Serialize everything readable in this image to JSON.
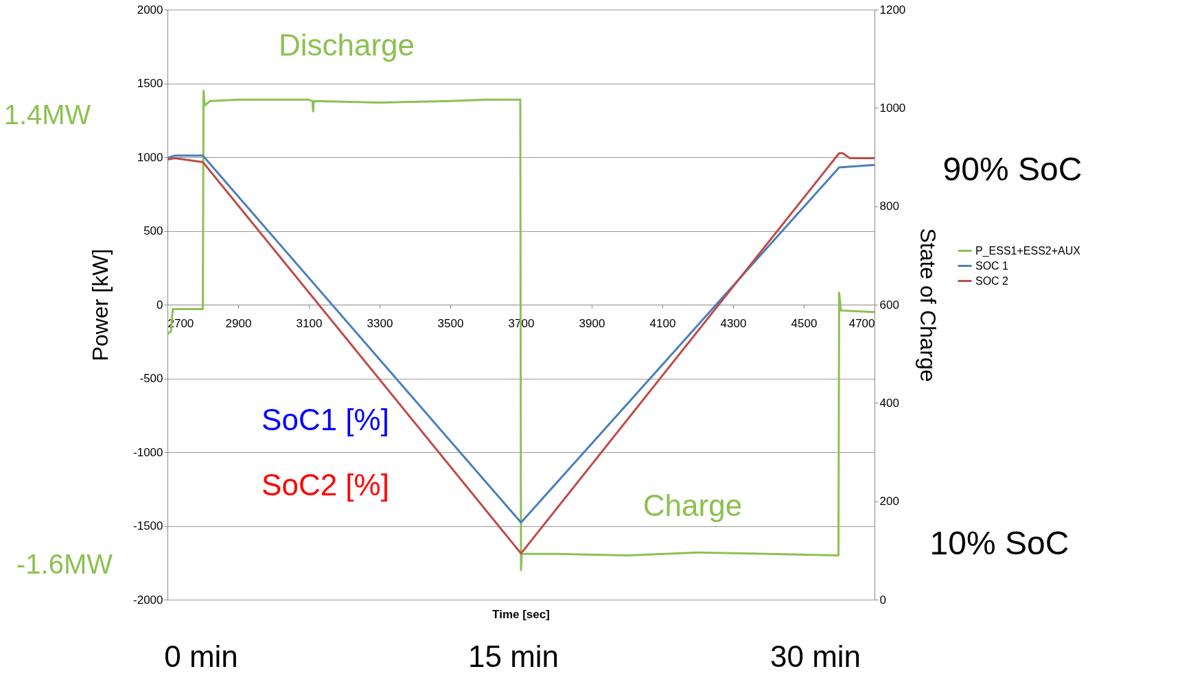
{
  "chart_data": {
    "type": "line",
    "xlabel": "Time [sec]",
    "ylabel": "Power [kW]",
    "y2label": "State of Charge",
    "xlim": [
      2700,
      4700
    ],
    "xticks": [
      2700,
      2900,
      3100,
      3300,
      3500,
      3700,
      3900,
      4100,
      4300,
      4500,
      4700
    ],
    "ylim": [
      -2000,
      2000
    ],
    "yticks": [
      -2000,
      -1500,
      -1000,
      -500,
      0,
      500,
      1000,
      1500,
      2000
    ],
    "y2lim": [
      0,
      1200
    ],
    "y2ticks": [
      0,
      200,
      400,
      600,
      800,
      1000,
      1200
    ],
    "grid": "y",
    "legend": "right",
    "series": [
      {
        "name": "P_ESS1+ESS2+AUX",
        "color": "#8cc152",
        "x": [
          2700,
          2710,
          2715,
          2800,
          2802,
          2805,
          2820,
          2900,
          3100,
          3110,
          3112,
          3114,
          3300,
          3500,
          3600,
          3698,
          3700,
          3702,
          3800,
          4000,
          4200,
          4400,
          4598,
          4600,
          4605,
          4700
        ],
        "values": [
          -200,
          -180,
          -30,
          -30,
          1450,
          1350,
          1380,
          1390,
          1390,
          1380,
          1310,
          1380,
          1370,
          1380,
          1390,
          1390,
          -1800,
          -1690,
          -1690,
          -1700,
          -1680,
          -1690,
          -1700,
          80,
          -40,
          -50
        ]
      },
      {
        "name": "SOC 1",
        "color": "#4a7ebb",
        "axis": "y2",
        "x": [
          2700,
          2720,
          2800,
          3700,
          4600,
          4700
        ],
        "values": [
          898,
          903,
          903,
          157,
          879,
          884
        ]
      },
      {
        "name": "SOC 2",
        "color": "#be4b48",
        "axis": "y2",
        "x": [
          2700,
          2720,
          2800,
          3700,
          4600,
          4610,
          4630,
          4700
        ],
        "values": [
          895,
          898,
          890,
          94,
          908,
          908,
          898,
          898
        ]
      }
    ],
    "annotations": [
      "Discharge",
      "Charge",
      "1.4MW",
      "-1.6MW",
      "90% SoC",
      "10% SoC",
      "SoC1 [%]",
      "SoC2 [%]",
      "0 min",
      "15 min",
      "30 min"
    ]
  }
}
